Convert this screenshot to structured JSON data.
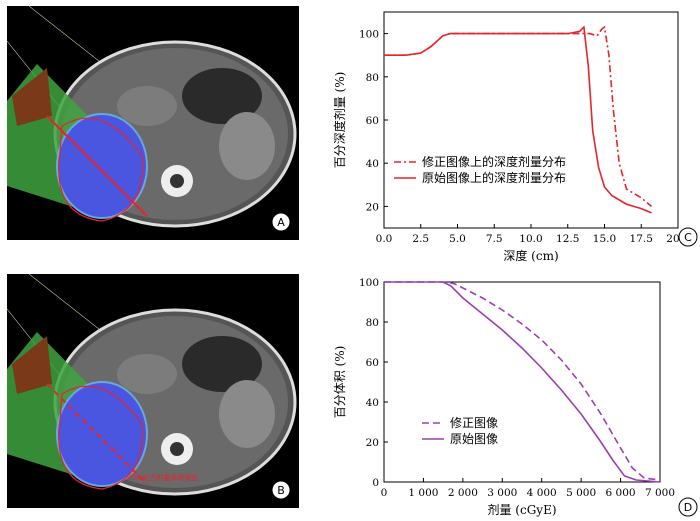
{
  "panels": {
    "A": {
      "label": "A"
    },
    "B": {
      "label": "B",
      "annotation": "95%处方剂量体积增加"
    },
    "C": {
      "label": "C"
    },
    "D": {
      "label": "D"
    }
  },
  "colors": {
    "series_corrected_C": "#e8232a",
    "series_original_C": "#e8232a",
    "series_corrected_D": "#9b3fb0",
    "series_original_D": "#9b3fb0",
    "beam_green": "#3fa33f",
    "target_blue": "#4a55e0",
    "isodose_red": "#e8232a"
  },
  "chart_data": [
    {
      "type": "line",
      "xlabel": "深度 (cm)",
      "ylabel": "百分深度剂量 (%)",
      "xlim": [
        0,
        20
      ],
      "ylim": [
        10,
        110
      ],
      "xticks": [
        "0.0",
        "2.5",
        "5.0",
        "7.5",
        "10.0",
        "12.5",
        "15.0",
        "17.5",
        "20.0"
      ],
      "yticks": [
        "20",
        "40",
        "60",
        "80",
        "100"
      ],
      "legend_position": "lower-left",
      "grid": false,
      "series": [
        {
          "name": "修正图像上的深度剂量分布",
          "style": "dash-dot",
          "x": [
            0,
            1.5,
            2.5,
            3.2,
            4.0,
            4.5,
            5,
            7.5,
            10,
            12.5,
            13.7,
            14.0,
            14.5,
            14.8,
            15.0,
            15.3,
            15.6,
            16.0,
            16.5,
            17.5,
            18.2
          ],
          "y": [
            90,
            90,
            91,
            94,
            99,
            100,
            100,
            100,
            100,
            100,
            100,
            100,
            99,
            102,
            103,
            90,
            65,
            40,
            28,
            24,
            20
          ]
        },
        {
          "name": "原始图像上的深度剂量分布",
          "style": "solid",
          "x": [
            0,
            1.5,
            2.5,
            3.2,
            4.0,
            4.5,
            5,
            7.5,
            10,
            12.5,
            13.3,
            13.6,
            13.9,
            14.2,
            14.6,
            15.0,
            15.5,
            16.5,
            17.5,
            18.2
          ],
          "y": [
            90,
            90,
            91,
            94,
            99,
            100,
            100,
            100,
            100,
            100,
            101,
            103,
            85,
            55,
            38,
            29,
            25,
            21,
            19,
            17
          ]
        }
      ]
    },
    {
      "type": "line",
      "xlabel": "剂量 (cGyE)",
      "ylabel": "百分体积 (%)",
      "xlim": [
        0,
        7000
      ],
      "ylim": [
        0,
        100
      ],
      "xticks": [
        "0",
        "1 000",
        "2 000",
        "3 000",
        "4 000",
        "5 000",
        "6 000",
        "7 000"
      ],
      "yticks": [
        "0",
        "20",
        "40",
        "60",
        "80",
        "100"
      ],
      "legend_position": "lower-left",
      "grid": false,
      "series": [
        {
          "name": "修正图像",
          "style": "dashed",
          "x": [
            0,
            1600,
            1800,
            2000,
            2500,
            3000,
            3500,
            4000,
            4500,
            5000,
            5500,
            6000,
            6300,
            6600,
            7000
          ],
          "y": [
            100,
            100,
            99,
            97,
            92,
            86,
            79,
            71,
            61,
            49,
            34,
            17,
            7,
            2,
            1
          ]
        },
        {
          "name": "原始图像",
          "style": "solid",
          "x": [
            0,
            1500,
            1700,
            2000,
            2500,
            3000,
            3500,
            4000,
            4500,
            5000,
            5500,
            5800,
            6100,
            6400,
            7000
          ],
          "y": [
            100,
            100,
            98,
            92,
            84,
            76,
            67,
            57,
            46,
            34,
            20,
            11,
            3,
            1,
            0
          ]
        }
      ]
    }
  ]
}
